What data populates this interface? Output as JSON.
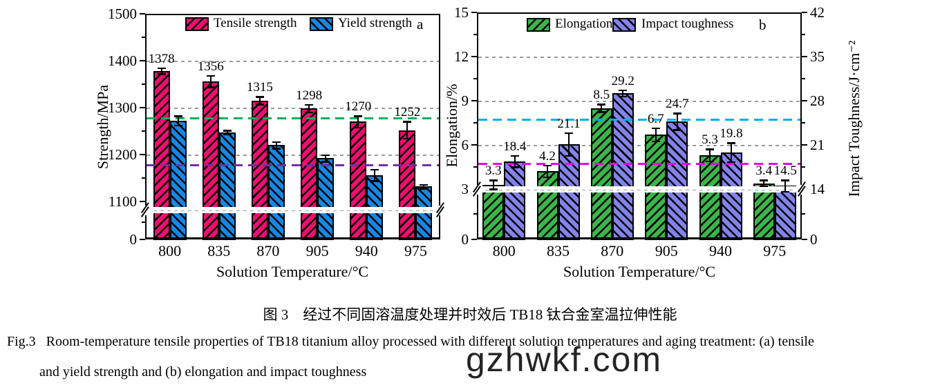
{
  "caption": {
    "zh": "图 3　经过不同固溶温度处理并时效后 TB18 钛合金室温拉伸性能",
    "en_line1": "Fig.3   Room-temperature tensile properties of TB18 titanium alloy processed with different solution temperatures and aging treatment: (a) tensile",
    "en_line2": "and yield strength and (b) elongation and impact toughness"
  },
  "watermark": "gzhwkf.com",
  "chart_data": [
    {
      "id": "a",
      "type": "bar",
      "panel_label": "a",
      "xlabel": "Solution Temperature/°C",
      "ylabel": "Strength/MPa",
      "categories": [
        "800",
        "835",
        "870",
        "905",
        "940",
        "975"
      ],
      "y_ticks": [
        "1500",
        "1400",
        "1300",
        "1200",
        "1100",
        "0"
      ],
      "ylim_shown": [
        1100,
        1500
      ],
      "axis_break_below": 1100,
      "grid": "dashed horizontal at 1400/1300/1200",
      "legend_position": "top inside",
      "series": [
        {
          "name": "Tensile strength",
          "color": "#ED0E70",
          "hatch": "fwd",
          "values": [
            1378,
            1356,
            1315,
            1298,
            1270,
            1252
          ],
          "errors": [
            6,
            12,
            8,
            8,
            12,
            18
          ],
          "labels": [
            "1378",
            "1356",
            "1315",
            "1298",
            "1270",
            "1252"
          ]
        },
        {
          "name": "Yield strength",
          "color": "#1787E3",
          "hatch": "back",
          "values": [
            1272,
            1247,
            1220,
            1192,
            1156,
            1132
          ],
          "errors": [
            10,
            4,
            7,
            7,
            12,
            4
          ],
          "labels": []
        }
      ],
      "reference_lines": [
        {
          "color": "#00B050",
          "value": 1277,
          "style": "dashed"
        },
        {
          "color": "#7030A0",
          "value": 1177,
          "style": "dashed"
        }
      ]
    },
    {
      "id": "b",
      "type": "bar",
      "panel_label": "b",
      "xlabel": "Solution Temperature/°C",
      "ylabel": "Elongation/%",
      "y2label": "Impact Toughness/J·cm⁻²",
      "categories": [
        "800",
        "835",
        "870",
        "905",
        "940",
        "975"
      ],
      "left_ticks": [
        "15",
        "12",
        "9",
        "6",
        "3",
        "0"
      ],
      "right_ticks": [
        "42",
        "35",
        "28",
        "21",
        "14",
        "0"
      ],
      "ylim_left_shown": [
        3,
        15
      ],
      "ylim_right_shown": [
        14,
        42
      ],
      "axis_break_below_left": 3,
      "axis_break_below_right": 14,
      "grid": "dashed horizontal at right ticks 35/28/21",
      "legend_position": "top inside",
      "series": [
        {
          "name": "Elongation",
          "axis": "left",
          "color": "#3BB54A",
          "hatch": "fwd",
          "values": [
            3.3,
            4.2,
            8.5,
            6.7,
            5.3,
            3.4
          ],
          "errors": [
            0.3,
            0.4,
            0.25,
            0.45,
            0.4,
            0.2
          ],
          "labels": [
            "3.3",
            "4.2",
            "8.5",
            "6.7",
            "5.3",
            "3.4"
          ]
        },
        {
          "name": "Impact toughness",
          "axis": "right",
          "color": "#8283E9",
          "hatch": "back",
          "values": [
            18.4,
            21.1,
            29.2,
            24.7,
            19.8,
            14.5
          ],
          "errors": [
            0.9,
            1.8,
            0.5,
            1.3,
            1.5,
            0.9
          ],
          "labels": [
            "18.4",
            "21.1",
            "29.2",
            "24.7",
            "19.8",
            "14.5"
          ]
        }
      ],
      "reference_lines": [
        {
          "color": "#00AEEF",
          "value": 7.7,
          "axis": "left",
          "style": "dashed"
        },
        {
          "color": "#E800E8",
          "value": 4.7,
          "axis": "left",
          "style": "dashed"
        }
      ]
    }
  ]
}
